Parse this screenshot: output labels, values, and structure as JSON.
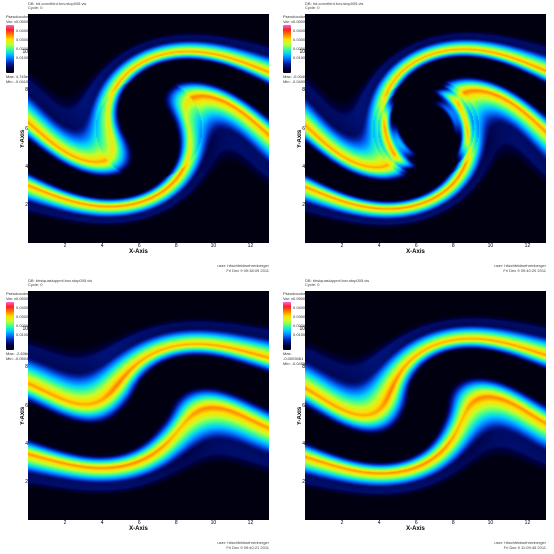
{
  "colormap": {
    "stops": [
      {
        "t": 0.0,
        "c": "#000010"
      },
      {
        "t": 0.1,
        "c": "#000040"
      },
      {
        "t": 0.2,
        "c": "#0020a0"
      },
      {
        "t": 0.3,
        "c": "#0070ff"
      },
      {
        "t": 0.4,
        "c": "#00d0ff"
      },
      {
        "t": 0.5,
        "c": "#40ff90"
      },
      {
        "t": 0.6,
        "c": "#c0ff30"
      },
      {
        "t": 0.7,
        "c": "#ffe000"
      },
      {
        "t": 0.8,
        "c": "#ff8000"
      },
      {
        "t": 0.9,
        "c": "#ff2020"
      },
      {
        "t": 1.0,
        "c": "#ff60d0"
      }
    ]
  },
  "legend_ticks": [
    "0.0500",
    "0.0400",
    "0.0300",
    "0.0200",
    "0.0100"
  ],
  "axes": {
    "xlabel": "X-Axis",
    "ylabel": "Y-Axis",
    "xticks": [
      2,
      4,
      6,
      8,
      10,
      12
    ],
    "yticks": [
      2,
      4,
      6,
      8,
      10
    ],
    "xlim": [
      0,
      13
    ],
    "ylim": [
      0,
      12
    ]
  },
  "panels": [
    {
      "header": "DB: hd-convthird.bov.stop005.vis\nCycle: 0",
      "legend_title": "Pseudocolor\nVar: v",
      "min": "Min: -0.04107",
      "max": "Max: 4.745e-07",
      "footer_user": "user: hitschfeldwehrenberger",
      "footer_date": "Fri Dec  9 09:38:09 2011",
      "swirl": {
        "turns": 2.2,
        "amp": 1.0,
        "innerBlue": true,
        "ripples": false
      }
    },
    {
      "header": "DB: hd-convthird.bov.stop005.vis\nCycle: 0",
      "legend_title": "Pseudocolor\nVar: v",
      "min": "Min: -0.04007",
      "max": "Max: -0.004048",
      "footer_user": "user: hitschfeldwehrenberger",
      "footer_date": "Fri Dec  9 09:40:20 2011",
      "swirl": {
        "turns": 2.4,
        "amp": 1.0,
        "innerBlue": true,
        "ripples": true
      }
    },
    {
      "header": "DB: bhsiquasiuppml.bov.stop005.vis\nCycle: 0",
      "legend_title": "Pseudocolor\nVar: v",
      "min": "Min: -0.05044",
      "max": "Max: -2.636e-07",
      "footer_user": "user: hitschfeldwehrenberger",
      "footer_date": "Fri Dec  9 09:40:21 2011",
      "swirl": {
        "turns": 1.6,
        "amp": 0.7,
        "innerBlue": false,
        "ripples": false
      }
    },
    {
      "header": "DB: bhsiquasiuppml.bov.stop005.vis\nCycle: 0",
      "legend_title": "Pseudocolor\nVar: v",
      "min": "Min: -0.04557",
      "max": "Max: -0.0003061",
      "footer_user": "user: hitschfeldwehrenberger",
      "footer_date": "Fri Dec  9 11:09:45 2011",
      "swirl": {
        "turns": 1.8,
        "amp": 0.8,
        "innerBlue": false,
        "ripples": false
      }
    }
  ]
}
